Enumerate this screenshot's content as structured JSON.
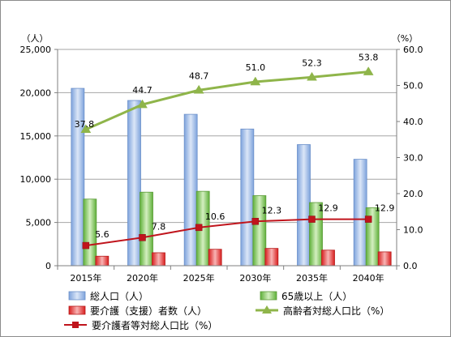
{
  "chart_data": {
    "type": "bar",
    "categories": [
      "2015年",
      "2020年",
      "2025年",
      "2030年",
      "2035年",
      "2040年"
    ],
    "left_axis": {
      "unit_label": "（人）",
      "ylim": [
        0,
        25000
      ],
      "ticks": [
        "0",
        "5,000",
        "10,000",
        "15,000",
        "20,000",
        "25,000"
      ]
    },
    "right_axis": {
      "unit_label": "（%）",
      "ylim": [
        0,
        60
      ],
      "ticks": [
        "0.0",
        "10.0",
        "20.0",
        "30.0",
        "40.0",
        "50.0",
        "60.0"
      ]
    },
    "bar_series": [
      {
        "name": "総人口（人）",
        "values": [
          20500,
          19100,
          17500,
          15800,
          14000,
          12300
        ],
        "color": "#9db7e3"
      },
      {
        "name": "65歳以上（人）",
        "values": [
          7700,
          8500,
          8600,
          8100,
          7300,
          6700
        ],
        "color": "#8fcf6a"
      },
      {
        "name": "要介護（支援）者数（人）",
        "values": [
          1100,
          1500,
          1900,
          2000,
          1800,
          1600
        ],
        "color": "#e23a3a"
      }
    ],
    "line_series": [
      {
        "name": "高齢者対総人口比（%）",
        "values": [
          37.8,
          44.7,
          48.7,
          51.0,
          52.3,
          53.8
        ],
        "labels": [
          "37.8",
          "44.7",
          "48.7",
          "51.0",
          "52.3",
          "53.8"
        ],
        "color": "#8fb54a",
        "marker": "triangle"
      },
      {
        "name": "要介護者等対総人口比（%）",
        "values": [
          5.6,
          7.8,
          10.6,
          12.3,
          12.9,
          12.9
        ],
        "labels": [
          "5.6",
          "7.8",
          "10.6",
          "12.3",
          "12.9",
          "12.9"
        ],
        "color": "#c0141c",
        "marker": "square"
      }
    ],
    "grid": true,
    "legend": "bottom"
  }
}
